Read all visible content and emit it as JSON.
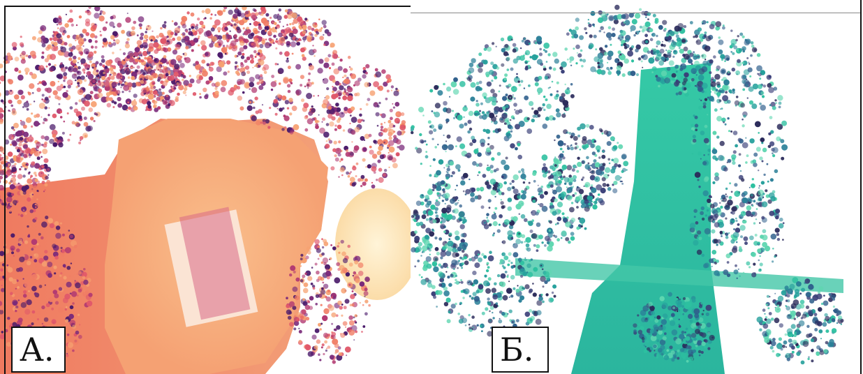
{
  "panels": {
    "a": {
      "label": "А.",
      "palette": [
        "#4a1a6a",
        "#7a2a7a",
        "#b23a72",
        "#e0586a",
        "#f07c64",
        "#f6a070",
        "#f9c08a",
        "#fde0b0"
      ]
    },
    "b": {
      "label": "Б.",
      "palette": [
        "#2a2a5a",
        "#3a3f78",
        "#2f5f8c",
        "#2a7f98",
        "#26a09c",
        "#2dc0a0",
        "#5ed6b0"
      ]
    }
  }
}
